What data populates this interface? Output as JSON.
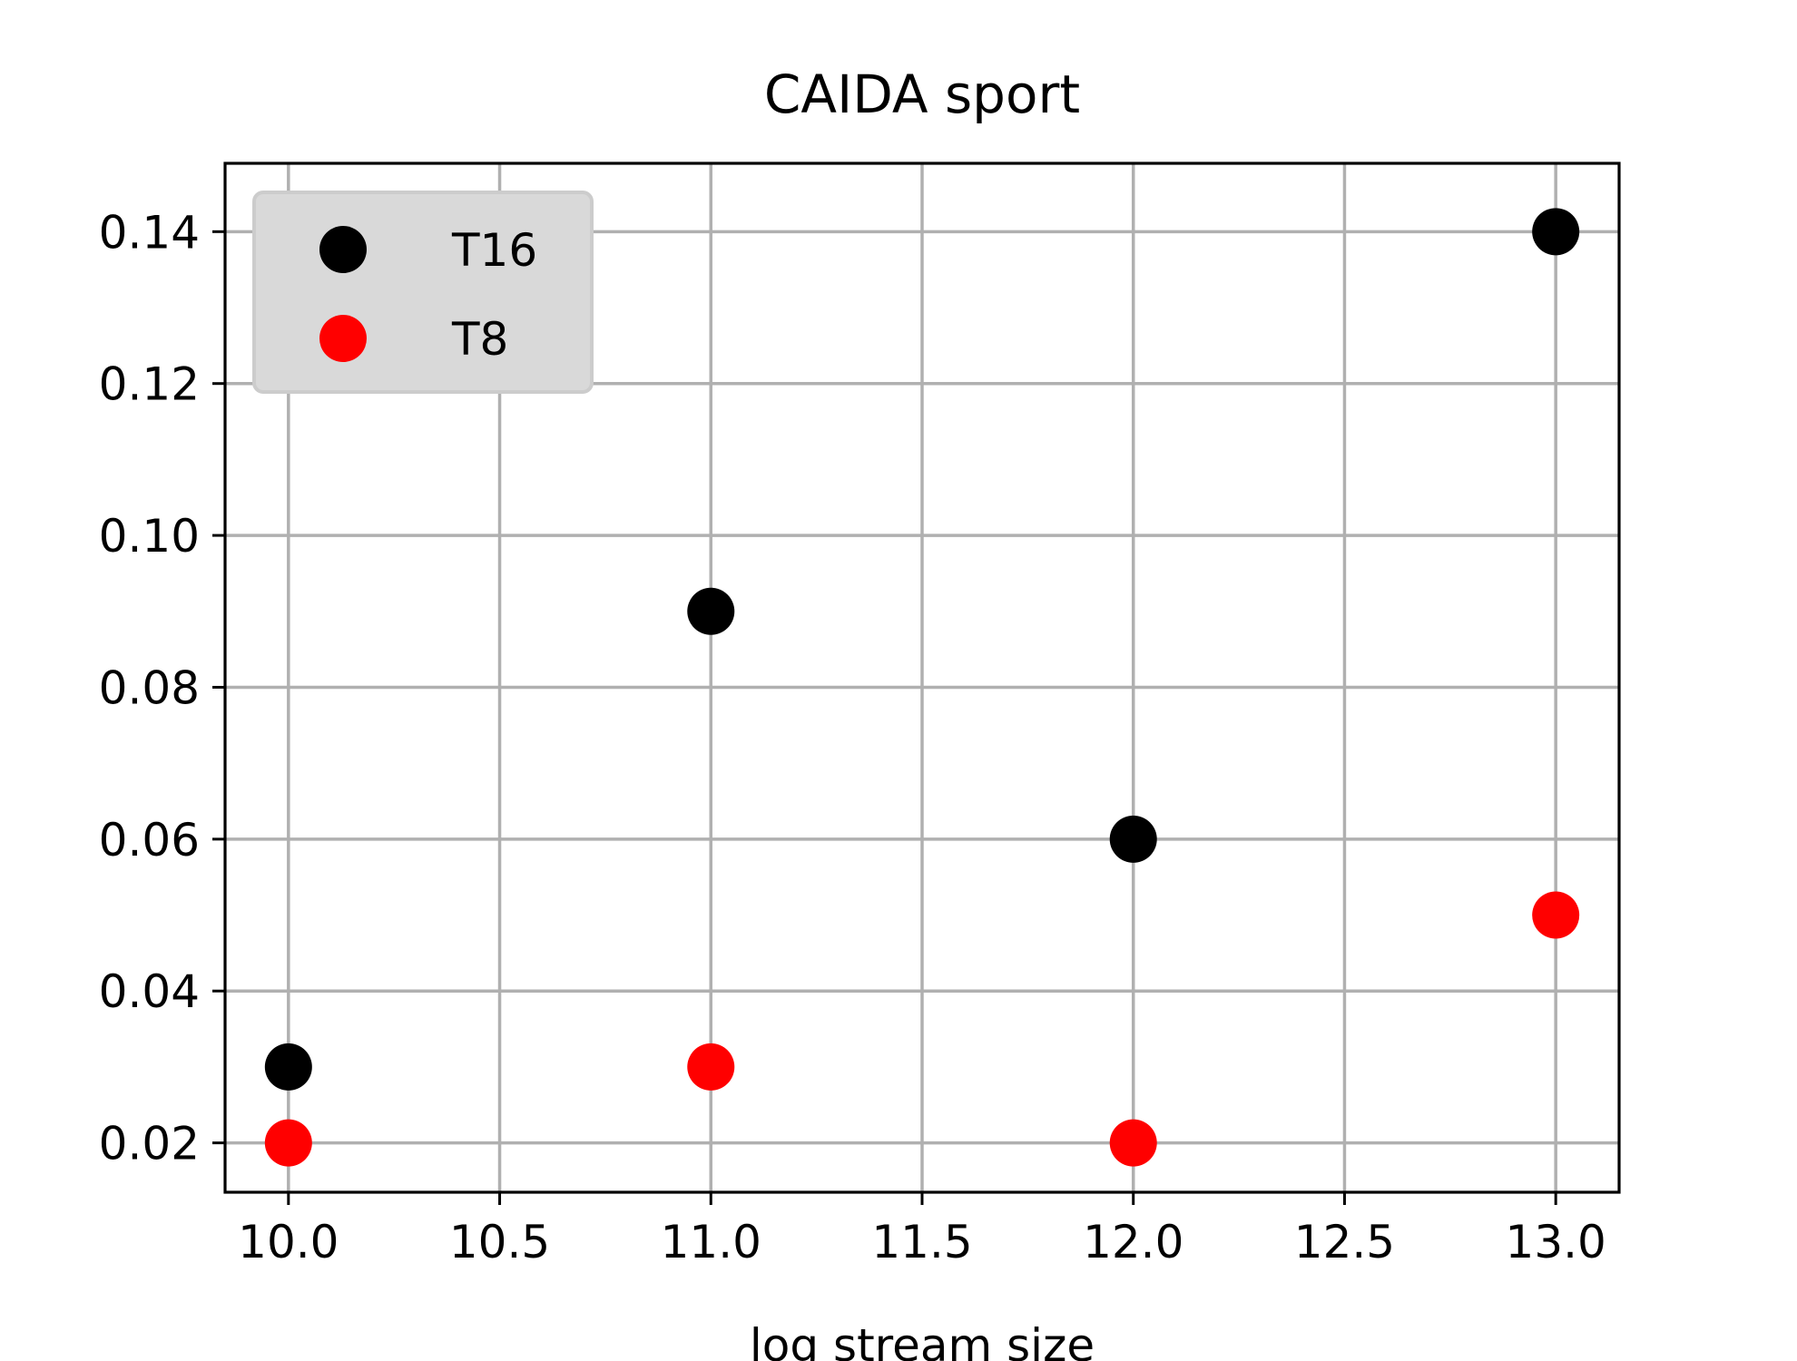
{
  "chart_data": {
    "type": "scatter",
    "title": "CAIDA sport",
    "xlabel": "log stream size",
    "ylabel": "",
    "xlim": [
      9.85,
      13.15
    ],
    "ylim": [
      0.0135,
      0.149
    ],
    "xticks": [
      10.0,
      10.5,
      11.0,
      11.5,
      12.0,
      12.5,
      13.0
    ],
    "xtick_labels": [
      "10.0",
      "10.5",
      "11.0",
      "11.5",
      "12.0",
      "12.5",
      "13.0"
    ],
    "yticks": [
      0.02,
      0.04,
      0.06,
      0.08,
      0.1,
      0.12,
      0.14
    ],
    "ytick_labels": [
      "0.02",
      "0.04",
      "0.06",
      "0.08",
      "0.10",
      "0.12",
      "0.14"
    ],
    "grid": true,
    "legend_position": "top-left",
    "series": [
      {
        "name": "T16",
        "color": "#000000",
        "x": [
          10,
          11,
          12,
          13
        ],
        "y": [
          0.03,
          0.09,
          0.06,
          0.14
        ]
      },
      {
        "name": "T8",
        "color": "#ff0000",
        "x": [
          10,
          11,
          12,
          13
        ],
        "y": [
          0.02,
          0.03,
          0.02,
          0.05
        ]
      }
    ]
  }
}
